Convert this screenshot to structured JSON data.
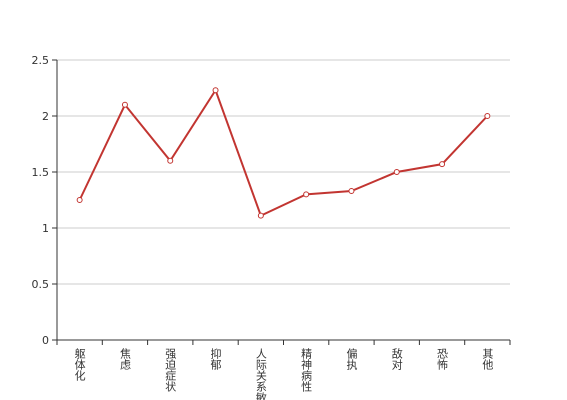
{
  "chart_data": {
    "type": "line",
    "categories": [
      "躯体化",
      "焦虑",
      "强迫症状",
      "抑郁",
      "人际关系敏感",
      "精神病性",
      "偏执",
      "敌对",
      "恐怖",
      "其他"
    ],
    "values": [
      1.25,
      2.1,
      1.6,
      2.23,
      1.11,
      1.3,
      1.33,
      1.5,
      1.57,
      2.0
    ],
    "color": "#c23531",
    "ylim": [
      0,
      2.5
    ],
    "yticks": [
      0,
      0.5,
      1,
      1.5,
      2,
      2.5
    ],
    "grid": true
  }
}
